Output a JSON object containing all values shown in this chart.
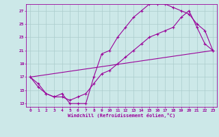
{
  "xlabel": "Windchill (Refroidissement éolien,°C)",
  "bg_color": "#cce8e8",
  "line_color": "#990099",
  "grid_color": "#aacccc",
  "xlim": [
    -0.5,
    23.5
  ],
  "ylim": [
    12.5,
    28.0
  ],
  "xticks": [
    0,
    1,
    2,
    3,
    4,
    5,
    6,
    7,
    8,
    9,
    10,
    11,
    12,
    13,
    14,
    15,
    16,
    17,
    18,
    19,
    20,
    21,
    22,
    23
  ],
  "yticks": [
    13,
    15,
    17,
    19,
    21,
    23,
    25,
    27
  ],
  "line1_x": [
    0,
    1,
    2,
    3,
    4,
    5,
    6,
    7,
    8,
    9,
    10,
    11,
    12,
    13,
    14,
    15,
    16,
    17,
    18,
    19,
    20,
    21,
    22,
    23
  ],
  "line1_y": [
    17,
    16,
    14.5,
    14,
    14.5,
    13,
    13,
    13,
    17,
    20.5,
    21,
    23,
    24.5,
    26,
    27,
    28,
    28,
    28,
    27.5,
    27,
    26.5,
    25,
    24,
    21
  ],
  "line2_x": [
    0,
    23
  ],
  "line2_y": [
    17,
    21
  ],
  "line3_x": [
    0,
    1,
    2,
    3,
    4,
    5,
    6,
    7,
    8,
    9,
    10,
    11,
    12,
    13,
    14,
    15,
    16,
    17,
    18,
    19,
    20,
    21,
    22,
    23
  ],
  "line3_y": [
    17,
    15.5,
    14.5,
    14,
    14,
    13.5,
    14,
    14.5,
    16,
    17.5,
    18,
    19,
    20,
    21,
    22,
    23,
    23.5,
    24,
    24.5,
    26,
    27,
    24.5,
    22,
    21
  ]
}
